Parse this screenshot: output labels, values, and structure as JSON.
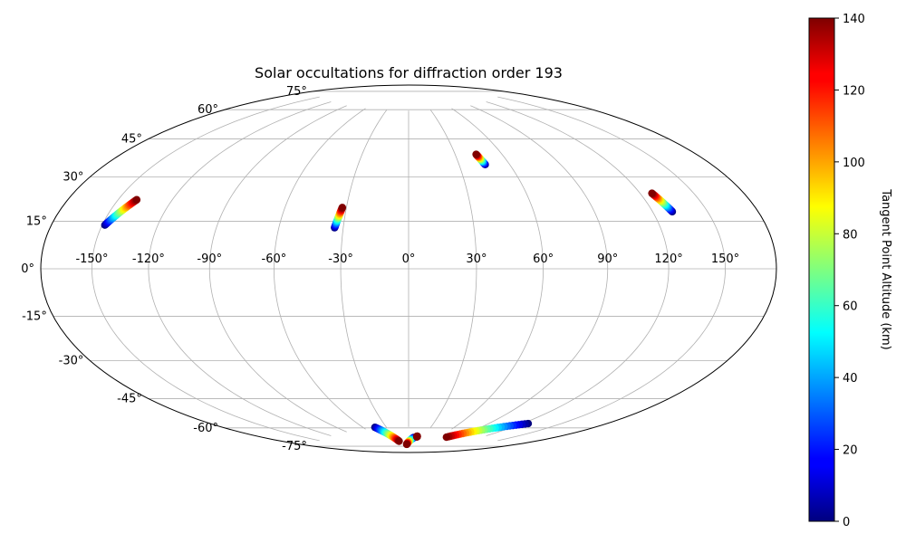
{
  "chart_data": {
    "type": "scatter",
    "projection": "hammer",
    "title": "Solar occultations for diffraction order 193",
    "grid": true,
    "longitude_ticks": [
      {
        "value": -150,
        "label": "-150°"
      },
      {
        "value": -120,
        "label": "-120°"
      },
      {
        "value": -90,
        "label": "-90°"
      },
      {
        "value": -60,
        "label": "-60°"
      },
      {
        "value": -30,
        "label": "-30°"
      },
      {
        "value": 0,
        "label": "0°"
      },
      {
        "value": 30,
        "label": "30°"
      },
      {
        "value": 60,
        "label": "60°"
      },
      {
        "value": 90,
        "label": "90°"
      },
      {
        "value": 120,
        "label": "120°"
      },
      {
        "value": 150,
        "label": "150°"
      }
    ],
    "latitude_ticks": [
      {
        "value": 75,
        "label": "75°"
      },
      {
        "value": 60,
        "label": "60°"
      },
      {
        "value": 45,
        "label": "45°"
      },
      {
        "value": 30,
        "label": "30°"
      },
      {
        "value": 15,
        "label": "15°"
      },
      {
        "value": 0,
        "label": "0°"
      },
      {
        "value": -15,
        "label": "-15°"
      },
      {
        "value": -30,
        "label": "-30°"
      },
      {
        "value": -45,
        "label": "-45°"
      },
      {
        "value": -60,
        "label": "-60°"
      },
      {
        "value": -75,
        "label": "-75°"
      }
    ],
    "colorbar": {
      "label": "Tangent Point Altitude (km)",
      "colormap": "jet",
      "range": [
        0,
        140
      ],
      "ticks": [
        {
          "value": 0,
          "label": "0"
        },
        {
          "value": 20,
          "label": "20"
        },
        {
          "value": 40,
          "label": "40"
        },
        {
          "value": 60,
          "label": "60"
        },
        {
          "value": 80,
          "label": "80"
        },
        {
          "value": 100,
          "label": "100"
        },
        {
          "value": 120,
          "label": "120"
        },
        {
          "value": 140,
          "label": "140"
        }
      ]
    },
    "tracks": [
      {
        "lon": [
          -148.5,
          -139.5
        ],
        "lat": [
          15.5,
          25.5
        ],
        "alt": [
          0,
          140
        ]
      },
      {
        "lon": [
          -34,
          -32
        ],
        "lat": [
          18,
          27
        ],
        "alt": [
          0,
          140
        ]
      },
      {
        "lon": [
          45.5,
          43.5
        ],
        "lat": [
          46.5,
          51.5
        ],
        "alt": [
          0,
          140
        ]
      },
      {
        "lon": [
          130.5,
          126.5
        ],
        "lat": [
          21.5,
          29
        ],
        "alt": [
          0,
          140
        ]
      },
      {
        "lon": [
          -45,
          -26
        ],
        "lat": [
          -74.5,
          -83
        ],
        "alt": [
          0,
          140
        ]
      },
      {
        "lon": [
          11,
          -7
        ],
        "lat": [
          -81,
          -85
        ],
        "alt": [
          0,
          140
        ]
      },
      {
        "lon": [
          125,
          73
        ],
        "lat": [
          -66.5,
          -79.3
        ],
        "alt": [
          0,
          140
        ]
      },
      {
        "lon": [
          17,
          17
        ],
        "lat": [
          -80.2,
          -80.5
        ],
        "alt": [
          140,
          140
        ]
      }
    ]
  }
}
